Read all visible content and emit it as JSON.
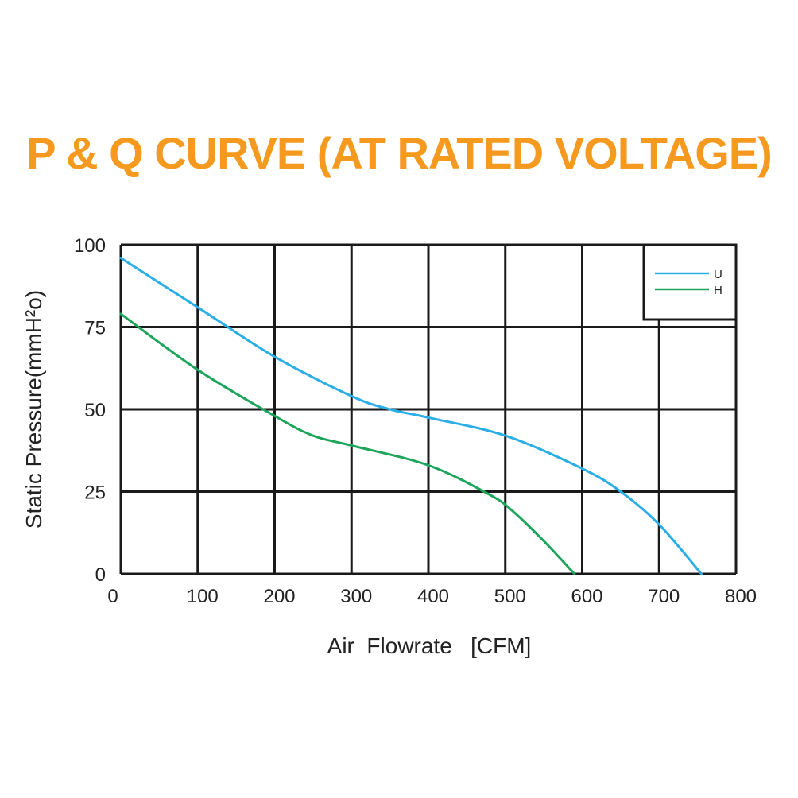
{
  "chart_data": {
    "type": "line",
    "title": "P & Q CURVE (AT RATED VOLTAGE)",
    "xlabel": "Air  Flowrate   [CFM]",
    "ylabel": "Static Pressure(mmH²o)",
    "xlim": [
      0,
      800
    ],
    "ylim": [
      0,
      100
    ],
    "x_ticks": [
      "0",
      "100",
      "200",
      "300",
      "400",
      "500",
      "600",
      "700",
      "800"
    ],
    "y_ticks": [
      "0",
      "25",
      "50",
      "75",
      "100"
    ],
    "grid": true,
    "legend_position": "top-right",
    "series": [
      {
        "name": "U",
        "color": "#29aee6",
        "points": [
          [
            0,
            96
          ],
          [
            100,
            81
          ],
          [
            200,
            66
          ],
          [
            300,
            54
          ],
          [
            350,
            50
          ],
          [
            400,
            47.5
          ],
          [
            500,
            42
          ],
          [
            600,
            32
          ],
          [
            650,
            25
          ],
          [
            700,
            15
          ],
          [
            755,
            0
          ]
        ]
      },
      {
        "name": "H",
        "color": "#1ea55c",
        "points": [
          [
            0,
            79
          ],
          [
            100,
            62
          ],
          [
            200,
            48
          ],
          [
            250,
            42
          ],
          [
            300,
            39
          ],
          [
            400,
            33
          ],
          [
            480,
            24
          ],
          [
            510,
            19
          ],
          [
            550,
            10
          ],
          [
            590,
            0
          ]
        ]
      }
    ]
  }
}
